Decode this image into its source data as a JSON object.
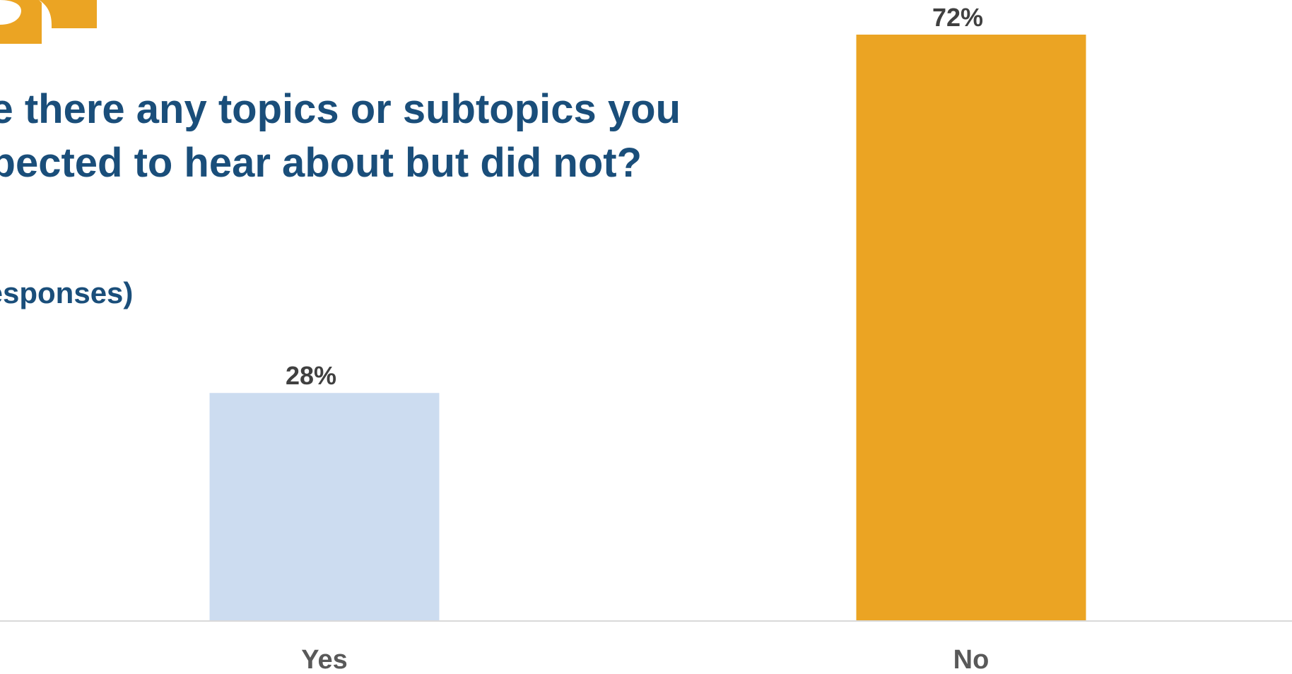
{
  "question": {
    "line1": "Are there any topics or subtopics you",
    "line2": "expected to hear about but did not?"
  },
  "response_note": "(% of responses)",
  "colors": {
    "title": "#1a4e7a",
    "bar_yes": "#ccdcf0",
    "bar_no": "#eba423",
    "logo": "#eba423",
    "axis": "#d9d9d9"
  },
  "chart_data": {
    "type": "bar",
    "categories": [
      "Yes",
      "No"
    ],
    "values": [
      28,
      72
    ],
    "value_labels": [
      "28%",
      "72%"
    ],
    "ylim": [
      0,
      72
    ],
    "grid": false,
    "legend": "none"
  }
}
